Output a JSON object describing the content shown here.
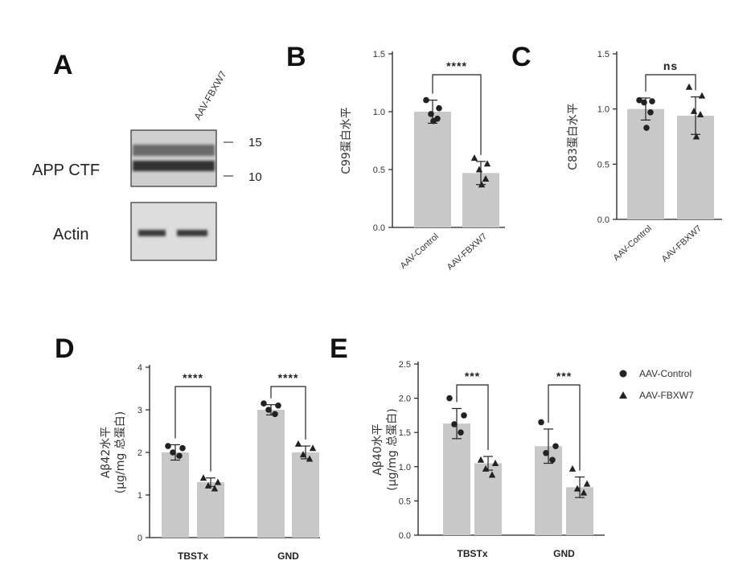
{
  "panel_labels": {
    "A": "A",
    "B": "B",
    "C": "C",
    "D": "D",
    "E": "E"
  },
  "blot": {
    "lane_label": "AAV-FBXW7",
    "row_labels": [
      "APP CTF",
      "Actin"
    ],
    "markers": [
      "15",
      "10"
    ]
  },
  "legend": [
    {
      "label": "AAV-Control",
      "marker": "circle"
    },
    {
      "label": "AAV-FBXW7",
      "marker": "triangle"
    }
  ],
  "colors": {
    "bar": "#c8c8c8",
    "ink": "#222222"
  },
  "chart_data": [
    {
      "id": "B",
      "type": "bar",
      "ylabel": "C99蛋白水平",
      "yticks": [
        "0.0",
        "0.5",
        "1.0",
        "1.5"
      ],
      "ylim": [
        0,
        1.5
      ],
      "categories": [
        "AAV-Control",
        "AAV-FBXW7"
      ],
      "values": [
        1.0,
        0.47
      ],
      "errors": [
        0.1,
        0.1
      ],
      "points": [
        [
          1.1,
          1.03,
          0.98,
          0.94,
          0.92
        ],
        [
          0.6,
          0.55,
          0.5,
          0.42,
          0.37
        ]
      ],
      "significance": "****"
    },
    {
      "id": "C",
      "type": "bar",
      "ylabel": "C83蛋白水平",
      "yticks": [
        "0.0",
        "0.5",
        "1.0",
        "1.5"
      ],
      "ylim": [
        0,
        1.5
      ],
      "categories": [
        "AAV-Control",
        "AAV-FBXW7"
      ],
      "values": [
        1.0,
        0.94
      ],
      "errors": [
        0.1,
        0.17
      ],
      "points": [
        [
          1.08,
          1.07,
          1.06,
          0.97,
          0.83
        ],
        [
          1.2,
          1.12,
          0.98,
          0.95,
          0.75
        ]
      ],
      "significance": "ns"
    },
    {
      "id": "D",
      "type": "bar",
      "ylabel": "Aβ42水平",
      "ylabel2": "(μg/mg 总蛋白)",
      "yticks": [
        "0",
        "1",
        "2",
        "3",
        "4"
      ],
      "ylim": [
        0,
        4
      ],
      "categories": [
        "TBSTx",
        "GND"
      ],
      "series": [
        {
          "name": "AAV-Control",
          "values": [
            2.0,
            3.0
          ],
          "errors": [
            0.18,
            0.12
          ],
          "points": [
            [
              2.15,
              2.1,
              2.0,
              1.92
            ],
            [
              3.15,
              3.1,
              3.0,
              2.9
            ]
          ]
        },
        {
          "name": "AAV-FBXW7",
          "values": [
            1.3,
            2.0
          ],
          "errors": [
            0.1,
            0.15
          ],
          "points": [
            [
              1.4,
              1.3,
              1.22,
              1.15
            ],
            [
              2.2,
              2.1,
              1.95,
              1.85
            ]
          ]
        }
      ],
      "significance": [
        "****",
        "****"
      ]
    },
    {
      "id": "E",
      "type": "bar",
      "ylabel": "Aβ40水平",
      "ylabel2": "(μg/mg 总蛋白)",
      "yticks": [
        "0.0",
        "0.5",
        "1.0",
        "1.5",
        "2.0",
        "2.5"
      ],
      "ylim": [
        0,
        2.5
      ],
      "categories": [
        "TBSTx",
        "GND"
      ],
      "series": [
        {
          "name": "AAV-Control",
          "values": [
            1.63,
            1.3
          ],
          "errors": [
            0.22,
            0.25
          ],
          "points": [
            [
              2.0,
              1.75,
              1.62,
              1.5
            ],
            [
              1.65,
              1.3,
              1.2,
              1.1
            ]
          ]
        },
        {
          "name": "AAV-FBXW7",
          "values": [
            1.05,
            0.7
          ],
          "errors": [
            0.1,
            0.15
          ],
          "points": [
            [
              1.1,
              1.05,
              0.97,
              0.88
            ],
            [
              0.97,
              0.75,
              0.68,
              0.62
            ]
          ]
        }
      ],
      "significance": [
        "***",
        "***"
      ]
    }
  ]
}
